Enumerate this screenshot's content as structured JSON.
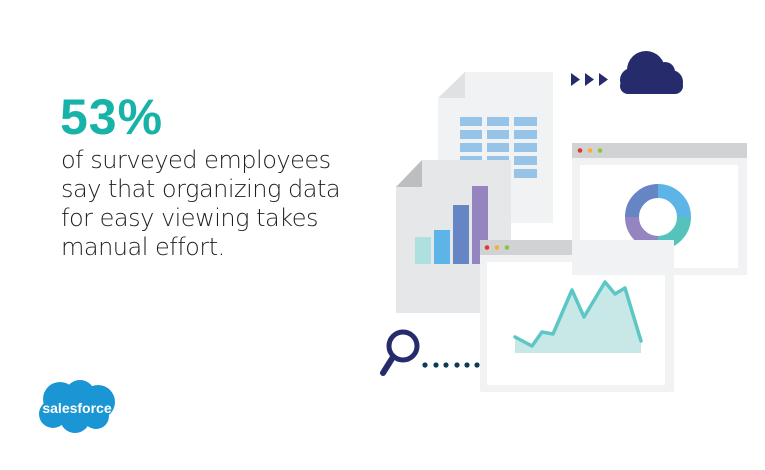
{
  "headline": {
    "stat": "53%",
    "lines": [
      "of surveyed employees",
      "say that organizing data",
      "for easy viewing takes",
      "manual effort."
    ]
  },
  "logo": {
    "text": "salesforce",
    "color": "#1b96d4"
  },
  "colors": {
    "accent": "#17b3a8",
    "navy": "#262b6b",
    "doc": "#e6e7e8",
    "window_frame": "#f1f2f3",
    "titlebar": "#d1d2d4"
  },
  "icons": [
    "table-document-icon",
    "bar-chart-document-icon",
    "cloud-icon",
    "arrows-icon",
    "donut-window-icon",
    "area-chart-window-icon",
    "magnifier-icon"
  ]
}
